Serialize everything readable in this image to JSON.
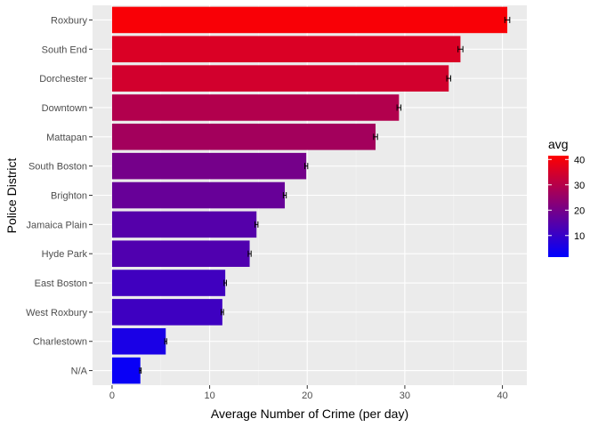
{
  "chart_data": {
    "type": "bar",
    "orientation": "horizontal",
    "xlabel": "Average Number of Crime (per day)",
    "ylabel": "Police District",
    "xlim": [
      -2,
      42.5
    ],
    "x_ticks": [
      0,
      10,
      20,
      30,
      40
    ],
    "grid": true,
    "legend_placement": "right",
    "legend": {
      "title": "avg",
      "range": [
        1.5,
        41.5
      ],
      "ticks": [
        10,
        20,
        30,
        40
      ],
      "color_low": "#0000ff",
      "color_high": "#ff0000"
    },
    "categories": [
      "Roxbury",
      "South End",
      "Dorchester",
      "Downtown",
      "Mattapan",
      "South Boston",
      "Brighton",
      "Jamaica Plain",
      "Hyde Park",
      "East Boston",
      "West Roxbury",
      "Charlestown",
      "N/A"
    ],
    "values": [
      40.5,
      35.7,
      34.5,
      29.4,
      27.0,
      19.9,
      17.7,
      14.8,
      14.1,
      11.6,
      11.3,
      5.5,
      2.9
    ],
    "error": [
      0.25,
      0.25,
      0.2,
      0.2,
      0.2,
      0.15,
      0.15,
      0.15,
      0.15,
      0.12,
      0.12,
      0.1,
      0.08
    ],
    "colors": {
      "panel_background": "#ebebeb",
      "grid_major": "#ffffff",
      "grid_minor": "#f5f5f5",
      "error_bar": "#000000"
    }
  }
}
